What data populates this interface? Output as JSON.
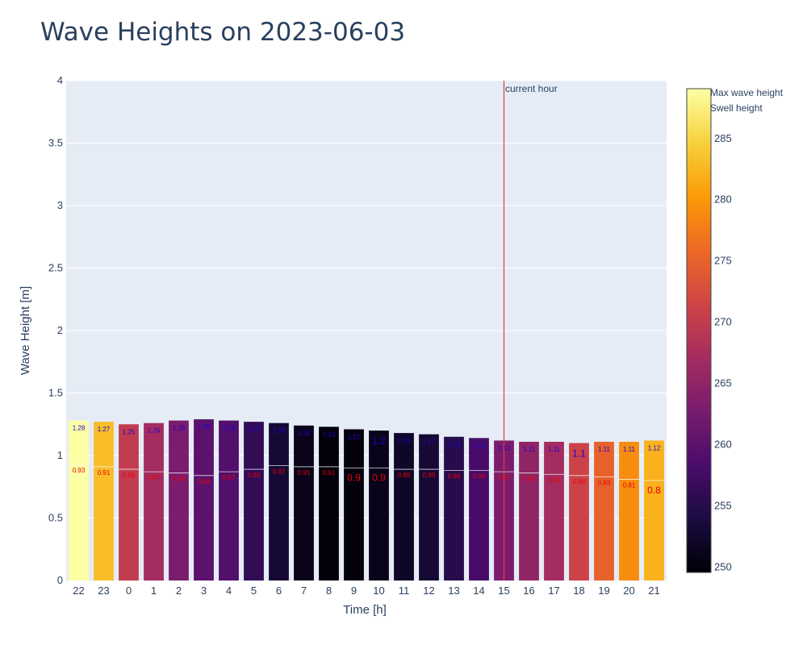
{
  "chart_data": {
    "type": "bar",
    "title": "Wave Heights on 2023-06-03",
    "xlabel": "Time [h]",
    "ylabel": "Wave Height [m]",
    "ylim": [
      0,
      4
    ],
    "yticks": [
      "0",
      "0.5",
      "1",
      "1.5",
      "2",
      "2.5",
      "3",
      "3.5",
      "4"
    ],
    "categories": [
      "22",
      "23",
      "0",
      "1",
      "2",
      "3",
      "4",
      "5",
      "6",
      "7",
      "8",
      "9",
      "10",
      "11",
      "12",
      "13",
      "14",
      "15",
      "16",
      "17",
      "18",
      "19",
      "20",
      "21"
    ],
    "series": [
      {
        "name": "Max wave height",
        "values": [
          1.28,
          1.27,
          1.25,
          1.26,
          1.28,
          1.29,
          1.28,
          1.27,
          1.26,
          1.24,
          1.23,
          1.21,
          1.2,
          1.18,
          1.17,
          1.15,
          1.14,
          1.12,
          1.11,
          1.11,
          1.1,
          1.11,
          1.11,
          1.12
        ],
        "labels": [
          "1.28",
          "1.27",
          "1.25",
          "1.26",
          "1.28",
          "1.29",
          "1.28",
          "1.27",
          "1.26",
          "1.24",
          "1.23",
          "1.21",
          "1.2",
          "1.18",
          "1.17",
          "1.15",
          "1.14",
          "1.12",
          "1.11",
          "1.11",
          "1.1",
          "1.11",
          "1.11",
          "1.12"
        ]
      },
      {
        "name": "Swell height",
        "values": [
          0.93,
          0.91,
          0.89,
          0.87,
          0.86,
          0.84,
          0.87,
          0.89,
          0.92,
          0.91,
          0.91,
          0.9,
          0.9,
          0.89,
          0.89,
          0.88,
          0.88,
          0.87,
          0.86,
          0.85,
          0.84,
          0.83,
          0.81,
          0.8
        ],
        "labels": [
          "0.93",
          "0.91",
          "0.89",
          "0.87",
          "0.86",
          "0.84",
          "0.87",
          "0.89",
          "0.92",
          "0.91",
          "0.91",
          "0.9",
          "0.9",
          "0.89",
          "0.89",
          "0.88",
          "0.88",
          "0.87",
          "0.86",
          "0.85",
          "0.84",
          "0.83",
          "0.81",
          "0.8"
        ]
      }
    ],
    "direction_color_values": [
      289,
      283,
      270,
      267,
      263,
      260,
      259,
      256,
      253,
      251,
      250,
      250,
      251,
      252,
      253,
      255,
      258,
      263,
      265,
      267,
      271,
      275,
      279,
      282
    ],
    "colorbar": {
      "min": 249.5,
      "max": 289,
      "ticks": [
        "250",
        "255",
        "260",
        "265",
        "270",
        "275",
        "280",
        "285"
      ],
      "colorscale": [
        "#000004",
        "#1b0c41",
        "#4a0c6b",
        "#781c6d",
        "#a52c60",
        "#cf4446",
        "#ed6925",
        "#fb9b06",
        "#f7d13d",
        "#fcffa4"
      ]
    },
    "annotation": {
      "text": "current hour",
      "x": "15",
      "color": "#e8383d"
    },
    "legend": {
      "placement": "top-right"
    },
    "grid": true,
    "colors": {
      "plot_bg": "#e5ecf6",
      "max_label": "#1f00d6",
      "swell_label": "#e8000b",
      "swell_line": "#ffffff"
    }
  }
}
